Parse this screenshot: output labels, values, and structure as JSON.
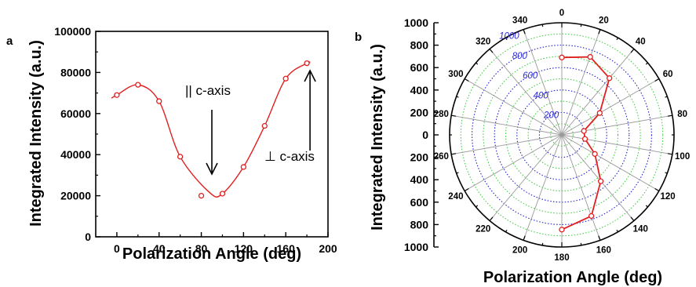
{
  "chart_data": [
    {
      "panel": "a",
      "type": "scatter",
      "xlabel": "Polarization Angle (deg)",
      "ylabel": "Integrated Intensity (a.u.)",
      "xlim": [
        -20,
        200
      ],
      "ylim": [
        0,
        100000
      ],
      "xticks": [
        "0",
        "40",
        "80",
        "120",
        "160",
        "200"
      ],
      "yticks": [
        "0",
        "20000",
        "40000",
        "60000",
        "80000",
        "100000"
      ],
      "series": [
        {
          "x": [
            0,
            20,
            40,
            60,
            80,
            100,
            120,
            140,
            160,
            180
          ],
          "y": [
            69000,
            74000,
            66000,
            39000,
            20000,
            21000,
            34000,
            54000,
            77000,
            84500
          ],
          "fit_curve": "smooth"
        }
      ],
      "annotations": [
        {
          "text": "|| c-axis",
          "x": 90,
          "y": 22000,
          "arrow": "down"
        },
        {
          "text": "⊥ c-axis",
          "x": 180,
          "y": 82000,
          "arrow": "up"
        }
      ],
      "color": "#e02020"
    },
    {
      "panel": "b",
      "type": "polar",
      "xlabel": "Polarization Angle (deg)",
      "ylabel": "Integrated Intensity (a.u.)",
      "rlim": [
        0,
        1000
      ],
      "r_axis_ticks": [
        "1000",
        "800",
        "600",
        "400",
        "200",
        "0",
        "200",
        "400",
        "600",
        "800",
        "1000"
      ],
      "ring_labels": [
        "200",
        "400",
        "600",
        "800",
        "1000"
      ],
      "angle_labels": [
        "0",
        "20",
        "40",
        "60",
        "80",
        "100",
        "120",
        "140",
        "160",
        "180",
        "200",
        "220",
        "240",
        "260",
        "280",
        "300",
        "320",
        "340"
      ],
      "series": [
        {
          "theta": [
            0,
            20,
            40,
            60,
            80,
            100,
            120,
            140,
            160,
            180
          ],
          "r": [
            690,
            740,
            660,
            390,
            200,
            210,
            340,
            540,
            770,
            845
          ]
        }
      ],
      "color": "#e02020"
    }
  ]
}
